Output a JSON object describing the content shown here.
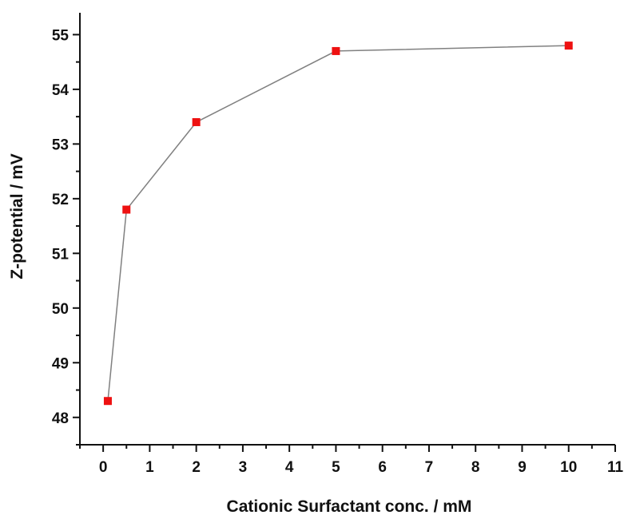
{
  "chart_data": {
    "type": "line",
    "title": "",
    "xlabel": "Cationic Surfactant conc. / mM",
    "ylabel": "Z-potential / mV",
    "xlim": [
      -0.5,
      11
    ],
    "ylim": [
      47.5,
      55.4
    ],
    "x_ticks": [
      0,
      1,
      2,
      3,
      4,
      5,
      6,
      7,
      8,
      9,
      10,
      11
    ],
    "y_ticks": [
      48,
      49,
      50,
      51,
      52,
      53,
      54,
      55
    ],
    "grid": false,
    "legend": "none",
    "series": [
      {
        "x": [
          0.1,
          0.5,
          2,
          5,
          10
        ],
        "y": [
          48.3,
          51.8,
          53.4,
          54.7,
          54.8
        ],
        "marker": "square",
        "marker_color": "#ee1111",
        "line_color": "#808080"
      }
    ]
  }
}
